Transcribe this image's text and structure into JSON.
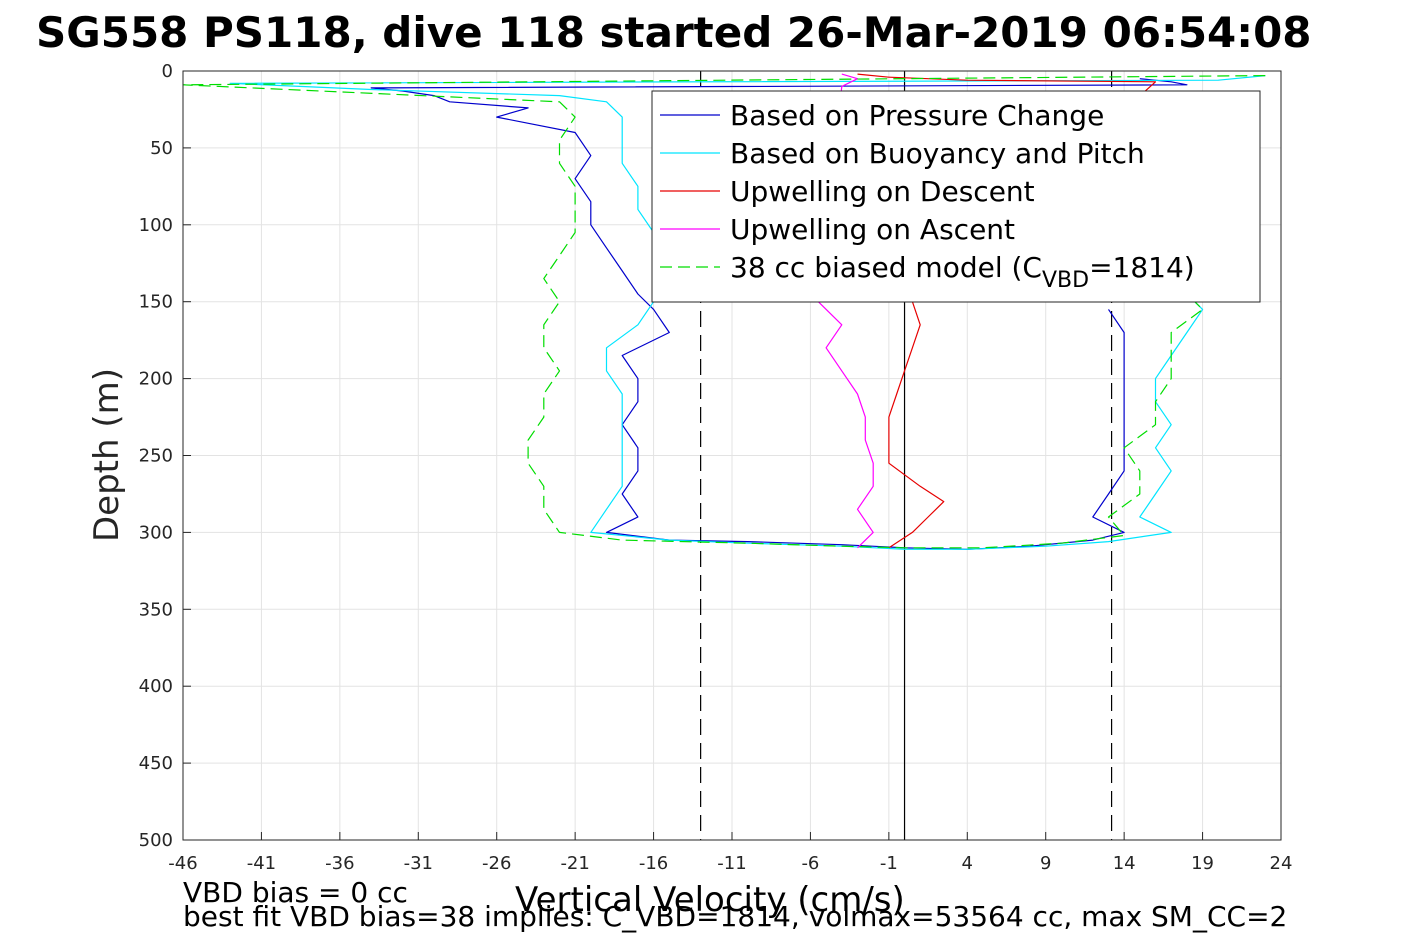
{
  "title": "SG558 PS118, dive 118 started 26-Mar-2019 06:54:08",
  "footer": {
    "line1": "VBD bias = 0 cc",
    "line2": "best fit VBD bias=38 implies: C_VBD=1814, volmax=53564 cc, max SM_CC=2"
  },
  "chart_data": {
    "type": "line",
    "title": "SG558 PS118, dive 118 started 26-Mar-2019 06:54:08",
    "xlabel": "Vertical Velocity (cm/s)",
    "ylabel": "Depth (m)",
    "xlim": [
      -46,
      24
    ],
    "ylim": [
      0,
      500
    ],
    "y_reversed": true,
    "grid": true,
    "xticks": [
      -46,
      -41,
      -36,
      -31,
      -26,
      -21,
      -16,
      -11,
      -6,
      -1,
      4,
      9,
      14,
      19,
      24
    ],
    "yticks": [
      0,
      50,
      100,
      150,
      200,
      250,
      300,
      350,
      400,
      450,
      500
    ],
    "legend_location": "top-right",
    "reference_lines": {
      "dashed_x": [
        -13,
        13.2
      ],
      "solid_x": [
        0
      ]
    },
    "series": [
      {
        "name": "Based on Pressure Change",
        "color": "#0000cc",
        "style": "solid",
        "points": [
          [
            15,
            5
          ],
          [
            17,
            7
          ],
          [
            18,
            9
          ],
          [
            -34,
            11
          ],
          [
            -32,
            13
          ],
          [
            -30,
            16
          ],
          [
            -29,
            20
          ],
          [
            -24,
            24
          ],
          [
            -26,
            30
          ],
          [
            -21,
            40
          ],
          [
            -20,
            55
          ],
          [
            -21,
            70
          ],
          [
            -20,
            85
          ],
          [
            -20,
            100
          ],
          [
            -19,
            115
          ],
          [
            -18,
            130
          ],
          [
            -17,
            145
          ],
          [
            -16,
            155
          ],
          [
            -15,
            170
          ],
          [
            -18,
            185
          ],
          [
            -17,
            200
          ],
          [
            -17,
            215
          ],
          [
            -18,
            230
          ],
          [
            -17,
            245
          ],
          [
            -17,
            260
          ],
          [
            -18,
            275
          ],
          [
            -17,
            290
          ],
          [
            -19,
            300
          ],
          [
            -15,
            305
          ],
          [
            -10,
            306
          ],
          [
            -4,
            308
          ],
          [
            0,
            310
          ],
          [
            4,
            311
          ],
          [
            8,
            309
          ],
          [
            12,
            305
          ],
          [
            14,
            300
          ],
          [
            12,
            290
          ],
          [
            13,
            275
          ],
          [
            14,
            260
          ],
          [
            14,
            245
          ],
          [
            14,
            230
          ],
          [
            14,
            215
          ],
          [
            14,
            200
          ],
          [
            14,
            185
          ],
          [
            14,
            170
          ],
          [
            13,
            155
          ]
        ]
      },
      {
        "name": "Based on Buoyancy and Pitch",
        "color": "#00e5ff",
        "style": "solid",
        "points": [
          [
            23,
            3
          ],
          [
            20,
            6
          ],
          [
            -43,
            8
          ],
          [
            -34,
            12
          ],
          [
            -22,
            16
          ],
          [
            -19,
            20
          ],
          [
            -18,
            30
          ],
          [
            -18,
            45
          ],
          [
            -18,
            60
          ],
          [
            -17,
            75
          ],
          [
            -17,
            90
          ],
          [
            -16,
            105
          ],
          [
            -16,
            120
          ],
          [
            -16,
            135
          ],
          [
            -16,
            150
          ],
          [
            -17,
            165
          ],
          [
            -19,
            180
          ],
          [
            -19,
            195
          ],
          [
            -18,
            210
          ],
          [
            -18,
            225
          ],
          [
            -18,
            240
          ],
          [
            -18,
            255
          ],
          [
            -18,
            270
          ],
          [
            -19,
            285
          ],
          [
            -20,
            300
          ],
          [
            -15,
            305
          ],
          [
            -10,
            307
          ],
          [
            -4,
            309
          ],
          [
            0,
            311
          ],
          [
            4,
            311
          ],
          [
            9,
            309
          ],
          [
            13,
            306
          ],
          [
            17,
            300
          ],
          [
            15,
            290
          ],
          [
            16,
            275
          ],
          [
            17,
            260
          ],
          [
            16,
            245
          ],
          [
            17,
            230
          ],
          [
            16,
            215
          ],
          [
            16,
            200
          ],
          [
            17,
            185
          ],
          [
            18,
            170
          ],
          [
            19,
            155
          ],
          [
            18,
            145
          ]
        ]
      },
      {
        "name": "Upwelling on Descent",
        "color": "#e60000",
        "style": "solid",
        "points": [
          [
            -3,
            2
          ],
          [
            -1,
            4
          ],
          [
            4,
            6
          ],
          [
            16,
            7
          ],
          [
            0.5,
            150
          ],
          [
            1,
            165
          ],
          [
            0.5,
            180
          ],
          [
            0,
            195
          ],
          [
            -0.5,
            210
          ],
          [
            -1,
            225
          ],
          [
            -1,
            240
          ],
          [
            -1,
            255
          ],
          [
            1,
            270
          ],
          [
            2.5,
            280
          ],
          [
            1.5,
            290
          ],
          [
            0.5,
            300
          ],
          [
            -1,
            310
          ]
        ]
      },
      {
        "name": "Upwelling on Ascent",
        "color": "#ff00ff",
        "style": "solid",
        "points": [
          [
            -4,
            2
          ],
          [
            -3,
            5
          ],
          [
            -4,
            10
          ],
          [
            -5.5,
            150
          ],
          [
            -4,
            165
          ],
          [
            -5,
            180
          ],
          [
            -4,
            195
          ],
          [
            -3,
            210
          ],
          [
            -2.5,
            225
          ],
          [
            -2.5,
            240
          ],
          [
            -2,
            255
          ],
          [
            -2,
            270
          ],
          [
            -3,
            285
          ],
          [
            -2,
            300
          ],
          [
            -3,
            310
          ]
        ]
      },
      {
        "name": "38 cc biased model (C_VBD=1814)",
        "color": "#00dd00",
        "style": "dashed",
        "points": [
          [
            23,
            3
          ],
          [
            -46,
            9
          ],
          [
            -22,
            20
          ],
          [
            -21,
            30
          ],
          [
            -22,
            45
          ],
          [
            -22,
            60
          ],
          [
            -21,
            75
          ],
          [
            -21,
            90
          ],
          [
            -21,
            105
          ],
          [
            -22,
            120
          ],
          [
            -23,
            135
          ],
          [
            -22,
            150
          ],
          [
            -23,
            165
          ],
          [
            -23,
            180
          ],
          [
            -22,
            195
          ],
          [
            -23,
            210
          ],
          [
            -23,
            225
          ],
          [
            -24,
            240
          ],
          [
            -24,
            255
          ],
          [
            -23,
            270
          ],
          [
            -23,
            285
          ],
          [
            -22,
            300
          ],
          [
            -18,
            305
          ],
          [
            -10,
            307
          ],
          [
            -4,
            309
          ],
          [
            0,
            310
          ],
          [
            5,
            310
          ],
          [
            10,
            307
          ],
          [
            14,
            302
          ],
          [
            13,
            290
          ],
          [
            15,
            275
          ],
          [
            15,
            260
          ],
          [
            14,
            245
          ],
          [
            16,
            230
          ],
          [
            16,
            215
          ],
          [
            17,
            200
          ],
          [
            17,
            185
          ],
          [
            17,
            170
          ],
          [
            19,
            155
          ],
          [
            18,
            145
          ]
        ]
      }
    ]
  }
}
